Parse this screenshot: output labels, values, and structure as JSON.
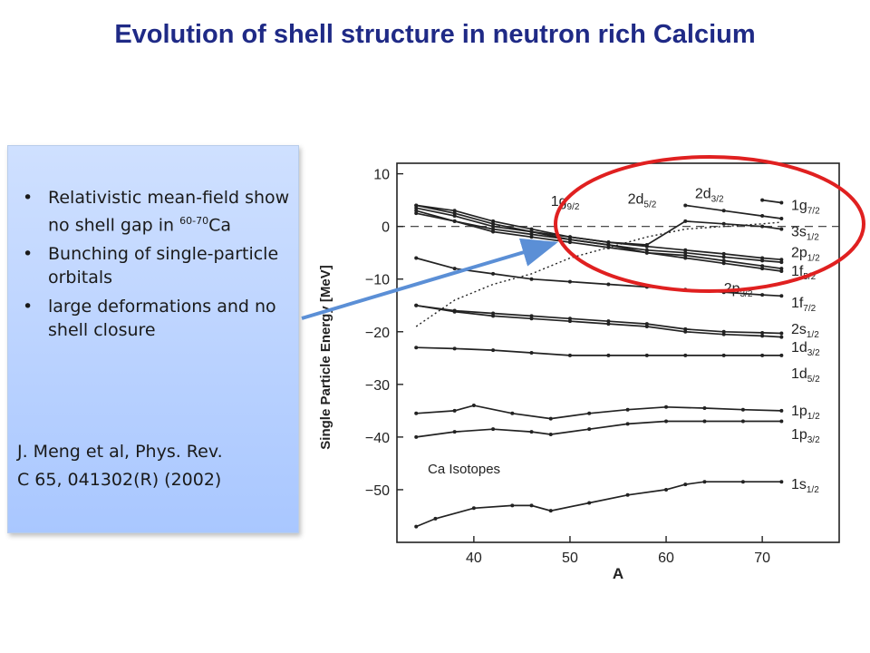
{
  "title": "Evolution of shell structure in neutron rich Calcium",
  "textbox": {
    "bullet1_text": "Relativistic mean-field show no shell gap in",
    "bullet1_sup": "60-70",
    "bullet1_elem": "Ca",
    "bullet2": "Bunching of single-particle orbitals",
    "bullet3": "large deformations and no shell closure",
    "ref_line1": "J. Meng et al, Phys. Rev.",
    "ref_line2": "C 65, 041302(R) (2002)"
  },
  "colors": {
    "title": "#1f2a86",
    "arrow": "#5b8fd6",
    "highlight_circle": "#e02020",
    "box": "#b5ceff"
  },
  "chart_data": {
    "type": "line",
    "xlabel": "A",
    "ylabel": "Single Particle Energy [MeV]",
    "annotation": "Ca Isotopes",
    "xlim": [
      32,
      78
    ],
    "ylim": [
      -60,
      12
    ],
    "xticks": [
      40,
      50,
      60,
      70
    ],
    "yticks": [
      10,
      0,
      -10,
      -20,
      -30,
      -40,
      -50
    ],
    "zero_line": "dashed",
    "series": [
      {
        "name": "1g9/2",
        "style": "dotted",
        "x": [
          34,
          38,
          42,
          46,
          50,
          54,
          58,
          62,
          66,
          70,
          72
        ],
        "y": [
          -19,
          -14,
          -11,
          -9,
          -6,
          -4,
          -2,
          -0.5,
          0,
          0.5,
          0.8
        ]
      },
      {
        "name": "2d5/2",
        "style": "solid",
        "x": [
          34,
          38,
          42,
          46,
          50,
          54,
          58,
          62,
          66,
          70,
          72
        ],
        "y": [
          4,
          3,
          1,
          -0.5,
          -2,
          -3,
          -3.8,
          -4.5,
          -5.2,
          -6,
          -6.3
        ]
      },
      {
        "name": "2d3/2",
        "style": "solid",
        "x": [
          62,
          66,
          70,
          72
        ],
        "y": [
          4,
          3,
          2,
          1.5
        ]
      },
      {
        "name": "1g7/2",
        "style": "solid",
        "x": [
          70,
          72
        ],
        "y": [
          5,
          4.5
        ]
      },
      {
        "name": "3s1/2",
        "style": "solid",
        "x": [
          34,
          38,
          42,
          46,
          50,
          54,
          58,
          62,
          66,
          70,
          72
        ],
        "y": [
          3.5,
          2,
          0,
          -1,
          -2,
          -3,
          -3.5,
          1,
          0.5,
          0,
          -0.5
        ]
      },
      {
        "name": "2p1/2",
        "style": "solid",
        "x": [
          34,
          38,
          42,
          46,
          50,
          54,
          58,
          62,
          66,
          70,
          72
        ],
        "y": [
          2.5,
          1,
          -0.5,
          -1.5,
          -2.5,
          -3.5,
          -4.5,
          -5,
          -5.8,
          -6.5,
          -6.8
        ]
      },
      {
        "name": "1f5/2",
        "style": "solid",
        "x": [
          34,
          38,
          42,
          46,
          50,
          54,
          58,
          62,
          66,
          70,
          72
        ],
        "y": [
          3,
          1,
          -1,
          -2,
          -3,
          -4,
          -5,
          -5.5,
          -6.5,
          -7.5,
          -8
        ]
      },
      {
        "name": "2p3/2",
        "style": "solid",
        "x": [
          34,
          38,
          42,
          46,
          50,
          54,
          58,
          62,
          66,
          70,
          72
        ],
        "y": [
          4,
          2.5,
          0.5,
          -1,
          -2.5,
          -3.5,
          -5,
          -6,
          -7,
          -8,
          -8.5
        ]
      },
      {
        "name": "1f7/2",
        "style": "solid",
        "x": [
          34,
          38,
          42,
          46,
          50,
          54,
          58,
          62,
          66,
          70,
          72
        ],
        "y": [
          -6,
          -8,
          -9,
          -10,
          -10.5,
          -11,
          -11.5,
          -12,
          -12.5,
          -13,
          -13.2
        ]
      },
      {
        "name": "2s1/2",
        "style": "solid",
        "x": [
          34,
          38,
          42,
          46,
          50,
          54,
          58,
          62,
          66,
          70,
          72
        ],
        "y": [
          -15,
          -16,
          -16.5,
          -17,
          -17.5,
          -18,
          -18.5,
          -19.5,
          -20,
          -20.2,
          -20.3
        ]
      },
      {
        "name": "1d3/2",
        "style": "solid",
        "x": [
          34,
          38,
          42,
          46,
          50,
          54,
          58,
          62,
          66,
          70,
          72
        ],
        "y": [
          -15,
          -16.2,
          -17,
          -17.5,
          -18,
          -18.5,
          -19,
          -20,
          -20.5,
          -20.8,
          -21
        ]
      },
      {
        "name": "1d5/2",
        "style": "solid",
        "x": [
          34,
          38,
          42,
          46,
          50,
          54,
          58,
          62,
          66,
          70,
          72
        ],
        "y": [
          -23,
          -23.2,
          -23.5,
          -24,
          -24.5,
          -24.5,
          -24.5,
          -24.5,
          -24.5,
          -24.5,
          -24.5
        ]
      },
      {
        "name": "1p1/2",
        "style": "solid",
        "x": [
          34,
          38,
          40,
          44,
          48,
          52,
          56,
          60,
          64,
          68,
          72
        ],
        "y": [
          -35.5,
          -35,
          -34,
          -35.5,
          -36.5,
          -35.5,
          -34.8,
          -34.3,
          -34.5,
          -34.8,
          -35
        ]
      },
      {
        "name": "1p3/2",
        "style": "solid",
        "x": [
          34,
          38,
          42,
          46,
          48,
          52,
          56,
          60,
          64,
          68,
          72
        ],
        "y": [
          -40,
          -39,
          -38.5,
          -39,
          -39.5,
          -38.5,
          -37.5,
          -37,
          -37,
          -37,
          -37
        ]
      },
      {
        "name": "1s1/2",
        "style": "solid",
        "x": [
          34,
          36,
          40,
          44,
          46,
          48,
          52,
          56,
          60,
          62,
          64,
          68,
          72
        ],
        "y": [
          -57,
          -55.5,
          -53.5,
          -53,
          -53,
          -54,
          -52.5,
          -51,
          -50,
          -49,
          -48.5,
          -48.5,
          -48.5
        ]
      }
    ]
  }
}
